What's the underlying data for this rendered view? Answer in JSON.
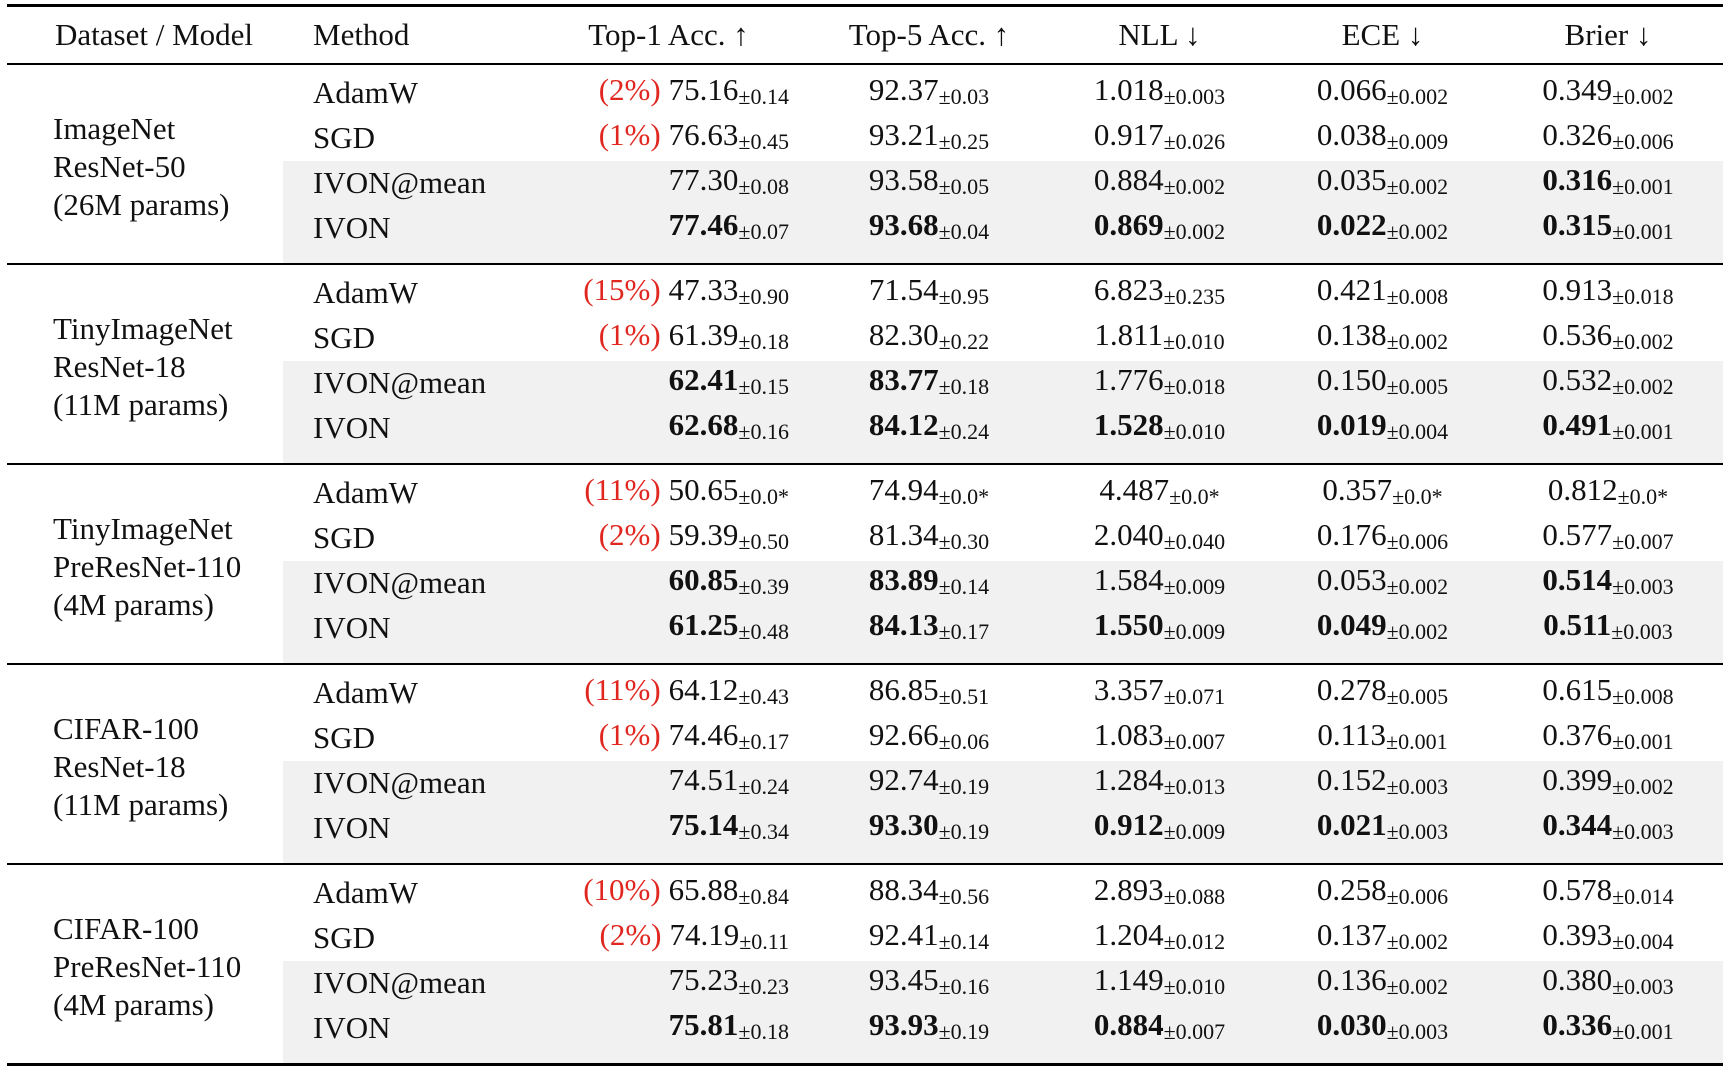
{
  "headers": [
    "Dataset / Model",
    "Method",
    "Top-1 Acc. ↑",
    "Top-5 Acc. ↑",
    "NLL ↓",
    "ECE ↓",
    "Brier ↓"
  ],
  "groups": [
    {
      "dataset": [
        "ImageNet",
        "ResNet-50",
        "(26M params)"
      ],
      "rows": [
        {
          "method": "AdamW",
          "shaded": false,
          "pct": "(2%)",
          "cells": [
            {
              "v": "75.16",
              "sd": "±0.14",
              "bold": false
            },
            {
              "v": "92.37",
              "sd": "±0.03",
              "bold": false
            },
            {
              "v": "1.018",
              "sd": "±0.003",
              "bold": false
            },
            {
              "v": "0.066",
              "sd": "±0.002",
              "bold": false
            },
            {
              "v": "0.349",
              "sd": "±0.002",
              "bold": false
            }
          ]
        },
        {
          "method": "SGD",
          "shaded": false,
          "pct": "(1%)",
          "cells": [
            {
              "v": "76.63",
              "sd": "±0.45",
              "bold": false
            },
            {
              "v": "93.21",
              "sd": "±0.25",
              "bold": false
            },
            {
              "v": "0.917",
              "sd": "±0.026",
              "bold": false
            },
            {
              "v": "0.038",
              "sd": "±0.009",
              "bold": false
            },
            {
              "v": "0.326",
              "sd": "±0.006",
              "bold": false
            }
          ]
        },
        {
          "method": "IVON@mean",
          "shaded": true,
          "pct": "",
          "cells": [
            {
              "v": "77.30",
              "sd": "±0.08",
              "bold": false
            },
            {
              "v": "93.58",
              "sd": "±0.05",
              "bold": false
            },
            {
              "v": "0.884",
              "sd": "±0.002",
              "bold": false
            },
            {
              "v": "0.035",
              "sd": "±0.002",
              "bold": false
            },
            {
              "v": "0.316",
              "sd": "±0.001",
              "bold": true
            }
          ]
        },
        {
          "method": "IVON",
          "shaded": true,
          "pct": "",
          "cells": [
            {
              "v": "77.46",
              "sd": "±0.07",
              "bold": true
            },
            {
              "v": "93.68",
              "sd": "±0.04",
              "bold": true
            },
            {
              "v": "0.869",
              "sd": "±0.002",
              "bold": true
            },
            {
              "v": "0.022",
              "sd": "±0.002",
              "bold": true
            },
            {
              "v": "0.315",
              "sd": "±0.001",
              "bold": true
            }
          ]
        }
      ]
    },
    {
      "dataset": [
        "TinyImageNet",
        "ResNet-18",
        "(11M params)"
      ],
      "rows": [
        {
          "method": "AdamW",
          "shaded": false,
          "pct": "(15%)",
          "cells": [
            {
              "v": "47.33",
              "sd": "±0.90",
              "bold": false
            },
            {
              "v": "71.54",
              "sd": "±0.95",
              "bold": false
            },
            {
              "v": "6.823",
              "sd": "±0.235",
              "bold": false
            },
            {
              "v": "0.421",
              "sd": "±0.008",
              "bold": false
            },
            {
              "v": "0.913",
              "sd": "±0.018",
              "bold": false
            }
          ]
        },
        {
          "method": "SGD",
          "shaded": false,
          "pct": "(1%)",
          "cells": [
            {
              "v": "61.39",
              "sd": "±0.18",
              "bold": false
            },
            {
              "v": "82.30",
              "sd": "±0.22",
              "bold": false
            },
            {
              "v": "1.811",
              "sd": "±0.010",
              "bold": false
            },
            {
              "v": "0.138",
              "sd": "±0.002",
              "bold": false
            },
            {
              "v": "0.536",
              "sd": "±0.002",
              "bold": false
            }
          ]
        },
        {
          "method": "IVON@mean",
          "shaded": true,
          "pct": "",
          "cells": [
            {
              "v": "62.41",
              "sd": "±0.15",
              "bold": true
            },
            {
              "v": "83.77",
              "sd": "±0.18",
              "bold": true
            },
            {
              "v": "1.776",
              "sd": "±0.018",
              "bold": false
            },
            {
              "v": "0.150",
              "sd": "±0.005",
              "bold": false
            },
            {
              "v": "0.532",
              "sd": "±0.002",
              "bold": false
            }
          ]
        },
        {
          "method": "IVON",
          "shaded": true,
          "pct": "",
          "cells": [
            {
              "v": "62.68",
              "sd": "±0.16",
              "bold": true
            },
            {
              "v": "84.12",
              "sd": "±0.24",
              "bold": true
            },
            {
              "v": "1.528",
              "sd": "±0.010",
              "bold": true
            },
            {
              "v": "0.019",
              "sd": "±0.004",
              "bold": true
            },
            {
              "v": "0.491",
              "sd": "±0.001",
              "bold": true
            }
          ]
        }
      ]
    },
    {
      "dataset": [
        "TinyImageNet",
        "PreResNet-110",
        "(4M params)"
      ],
      "rows": [
        {
          "method": "AdamW",
          "shaded": false,
          "pct": "(11%)",
          "cells": [
            {
              "v": "50.65",
              "sd": "±0.0*",
              "bold": false
            },
            {
              "v": "74.94",
              "sd": "±0.0*",
              "bold": false
            },
            {
              "v": "4.487",
              "sd": "±0.0*",
              "bold": false
            },
            {
              "v": "0.357",
              "sd": "±0.0*",
              "bold": false
            },
            {
              "v": "0.812",
              "sd": "±0.0*",
              "bold": false
            }
          ]
        },
        {
          "method": "SGD",
          "shaded": false,
          "pct": "(2%)",
          "cells": [
            {
              "v": "59.39",
              "sd": "±0.50",
              "bold": false
            },
            {
              "v": "81.34",
              "sd": "±0.30",
              "bold": false
            },
            {
              "v": "2.040",
              "sd": "±0.040",
              "bold": false
            },
            {
              "v": "0.176",
              "sd": "±0.006",
              "bold": false
            },
            {
              "v": "0.577",
              "sd": "±0.007",
              "bold": false
            }
          ]
        },
        {
          "method": "IVON@mean",
          "shaded": true,
          "pct": "",
          "cells": [
            {
              "v": "60.85",
              "sd": "±0.39",
              "bold": true
            },
            {
              "v": "83.89",
              "sd": "±0.14",
              "bold": true
            },
            {
              "v": "1.584",
              "sd": "±0.009",
              "bold": false
            },
            {
              "v": "0.053",
              "sd": "±0.002",
              "bold": false
            },
            {
              "v": "0.514",
              "sd": "±0.003",
              "bold": true
            }
          ]
        },
        {
          "method": "IVON",
          "shaded": true,
          "pct": "",
          "cells": [
            {
              "v": "61.25",
              "sd": "±0.48",
              "bold": true
            },
            {
              "v": "84.13",
              "sd": "±0.17",
              "bold": true
            },
            {
              "v": "1.550",
              "sd": "±0.009",
              "bold": true
            },
            {
              "v": "0.049",
              "sd": "±0.002",
              "bold": true
            },
            {
              "v": "0.511",
              "sd": "±0.003",
              "bold": true
            }
          ]
        }
      ]
    },
    {
      "dataset": [
        "CIFAR-100",
        "ResNet-18",
        "(11M params)"
      ],
      "rows": [
        {
          "method": "AdamW",
          "shaded": false,
          "pct": "(11%)",
          "cells": [
            {
              "v": "64.12",
              "sd": "±0.43",
              "bold": false
            },
            {
              "v": "86.85",
              "sd": "±0.51",
              "bold": false
            },
            {
              "v": "3.357",
              "sd": "±0.071",
              "bold": false
            },
            {
              "v": "0.278",
              "sd": "±0.005",
              "bold": false
            },
            {
              "v": "0.615",
              "sd": "±0.008",
              "bold": false
            }
          ]
        },
        {
          "method": "SGD",
          "shaded": false,
          "pct": "(1%)",
          "cells": [
            {
              "v": "74.46",
              "sd": "±0.17",
              "bold": false
            },
            {
              "v": "92.66",
              "sd": "±0.06",
              "bold": false
            },
            {
              "v": "1.083",
              "sd": "±0.007",
              "bold": false
            },
            {
              "v": "0.113",
              "sd": "±0.001",
              "bold": false
            },
            {
              "v": "0.376",
              "sd": "±0.001",
              "bold": false
            }
          ]
        },
        {
          "method": "IVON@mean",
          "shaded": true,
          "pct": "",
          "cells": [
            {
              "v": "74.51",
              "sd": "±0.24",
              "bold": false
            },
            {
              "v": "92.74",
              "sd": "±0.19",
              "bold": false
            },
            {
              "v": "1.284",
              "sd": "±0.013",
              "bold": false
            },
            {
              "v": "0.152",
              "sd": "±0.003",
              "bold": false
            },
            {
              "v": "0.399",
              "sd": "±0.002",
              "bold": false
            }
          ]
        },
        {
          "method": "IVON",
          "shaded": true,
          "pct": "",
          "cells": [
            {
              "v": "75.14",
              "sd": "±0.34",
              "bold": true
            },
            {
              "v": "93.30",
              "sd": "±0.19",
              "bold": true
            },
            {
              "v": "0.912",
              "sd": "±0.009",
              "bold": true
            },
            {
              "v": "0.021",
              "sd": "±0.003",
              "bold": true
            },
            {
              "v": "0.344",
              "sd": "±0.003",
              "bold": true
            }
          ]
        }
      ]
    },
    {
      "dataset": [
        "CIFAR-100",
        "PreResNet-110",
        "(4M params)"
      ],
      "rows": [
        {
          "method": "AdamW",
          "shaded": false,
          "pct": "(10%)",
          "cells": [
            {
              "v": "65.88",
              "sd": "±0.84",
              "bold": false
            },
            {
              "v": "88.34",
              "sd": "±0.56",
              "bold": false
            },
            {
              "v": "2.893",
              "sd": "±0.088",
              "bold": false
            },
            {
              "v": "0.258",
              "sd": "±0.006",
              "bold": false
            },
            {
              "v": "0.578",
              "sd": "±0.014",
              "bold": false
            }
          ]
        },
        {
          "method": "SGD",
          "shaded": false,
          "pct": "(2%)",
          "cells": [
            {
              "v": "74.19",
              "sd": "±0.11",
              "bold": false
            },
            {
              "v": "92.41",
              "sd": "±0.14",
              "bold": false
            },
            {
              "v": "1.204",
              "sd": "±0.012",
              "bold": false
            },
            {
              "v": "0.137",
              "sd": "±0.002",
              "bold": false
            },
            {
              "v": "0.393",
              "sd": "±0.004",
              "bold": false
            }
          ]
        },
        {
          "method": "IVON@mean",
          "shaded": true,
          "pct": "",
          "cells": [
            {
              "v": "75.23",
              "sd": "±0.23",
              "bold": false
            },
            {
              "v": "93.45",
              "sd": "±0.16",
              "bold": false
            },
            {
              "v": "1.149",
              "sd": "±0.010",
              "bold": false
            },
            {
              "v": "0.136",
              "sd": "±0.002",
              "bold": false
            },
            {
              "v": "0.380",
              "sd": "±0.003",
              "bold": false
            }
          ]
        },
        {
          "method": "IVON",
          "shaded": true,
          "pct": "",
          "cells": [
            {
              "v": "75.81",
              "sd": "±0.18",
              "bold": true
            },
            {
              "v": "93.93",
              "sd": "±0.19",
              "bold": true
            },
            {
              "v": "0.884",
              "sd": "±0.007",
              "bold": true
            },
            {
              "v": "0.030",
              "sd": "±0.003",
              "bold": true
            },
            {
              "v": "0.336",
              "sd": "±0.001",
              "bold": true
            }
          ]
        }
      ]
    }
  ],
  "colors": {
    "pct_text": "#e0261f",
    "shade": "#f1f1f1"
  }
}
